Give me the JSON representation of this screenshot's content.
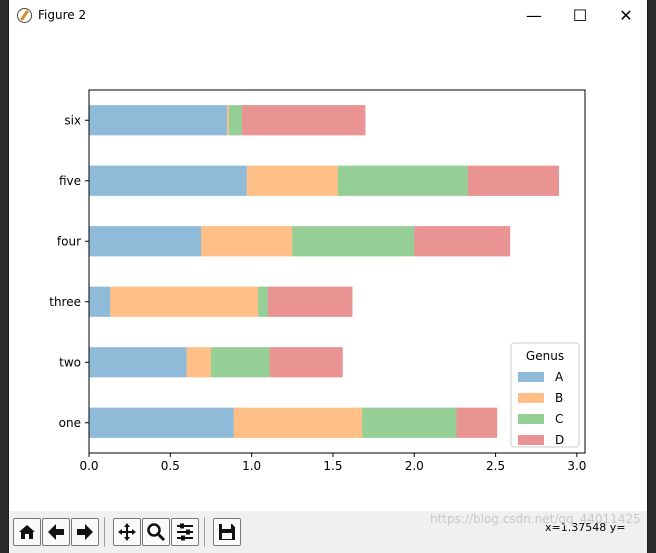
{
  "window": {
    "title": "Figure 2",
    "minimize_glyph": "—",
    "maximize_glyph": "☐",
    "close_glyph": "✕"
  },
  "toolbar": {
    "buttons": [
      {
        "name": "home-button",
        "icon": "home-icon"
      },
      {
        "name": "back-button",
        "icon": "arrow-left-icon"
      },
      {
        "name": "forward-button",
        "icon": "arrow-right-icon"
      },
      {
        "name": "pan-button",
        "icon": "move-icon"
      },
      {
        "name": "zoom-button",
        "icon": "zoom-icon"
      },
      {
        "name": "configure-subplots-button",
        "icon": "sliders-icon"
      },
      {
        "name": "save-button",
        "icon": "save-icon"
      }
    ],
    "coords_text": "x=1.37548     y=",
    "watermark": "https://blog.csdn.net/qq_44011425"
  },
  "chart_data": {
    "type": "bar",
    "orientation": "horizontal",
    "stacked": true,
    "categories": [
      "one",
      "two",
      "three",
      "four",
      "five",
      "six"
    ],
    "series": [
      {
        "name": "A",
        "color": "#1f77b4",
        "values": [
          0.89,
          0.6,
          0.13,
          0.69,
          0.97,
          0.85
        ]
      },
      {
        "name": "B",
        "color": "#ff7f0e",
        "values": [
          0.79,
          0.15,
          0.91,
          0.56,
          0.56,
          0.01
        ]
      },
      {
        "name": "C",
        "color": "#2ca02c",
        "values": [
          0.58,
          0.36,
          0.06,
          0.75,
          0.8,
          0.08
        ]
      },
      {
        "name": "D",
        "color": "#d62728",
        "values": [
          0.25,
          0.45,
          0.52,
          0.59,
          0.56,
          0.76
        ]
      }
    ],
    "alpha": 0.5,
    "xlim": [
      0,
      3.05
    ],
    "xticks": [
      0.0,
      0.5,
      1.0,
      1.5,
      2.0,
      2.5,
      3.0
    ],
    "xtick_labels": [
      "0.0",
      "0.5",
      "1.0",
      "1.5",
      "2.0",
      "2.5",
      "3.0"
    ],
    "legend_title": "Genus",
    "legend_position": "lower-right",
    "title": "",
    "xlabel": "",
    "ylabel": ""
  }
}
